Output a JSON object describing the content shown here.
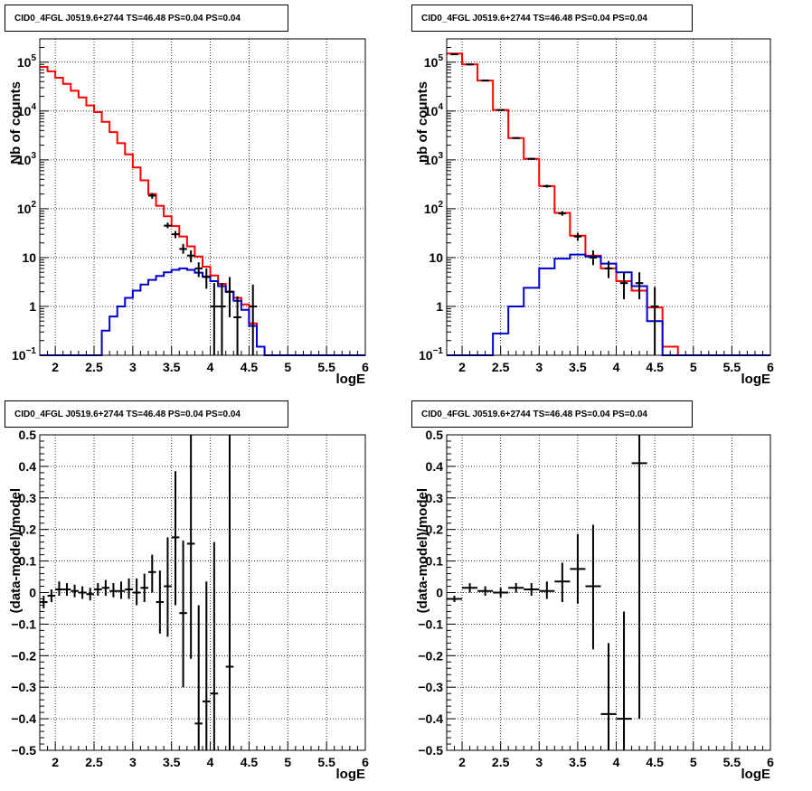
{
  "colors": {
    "background": "#ffffff",
    "frame": "#000000",
    "grid": "#000000",
    "data": "#000000",
    "total_model": "#ff0000",
    "source_model": "#0000cc"
  },
  "chart_data": [
    {
      "id": "counts-left",
      "type": "line",
      "title": "CID0_4FGL J0519.6+2744 TS=46.48 PS=0.04 PS=0.04",
      "xlabel": "logE",
      "ylabel": "Nb of counts",
      "xlim": [
        1.8,
        6.0
      ],
      "ylim": [
        0.1,
        300000
      ],
      "yscale": "log",
      "grid": true,
      "xticks": [
        "2",
        "2.5",
        "3",
        "3.5",
        "4",
        "4.5",
        "5",
        "5.5",
        "6"
      ],
      "yticks": [
        {
          "value": 0.1,
          "base": "10",
          "exp": "−1"
        },
        {
          "value": 1,
          "label": "1"
        },
        {
          "value": 10,
          "label": "10"
        },
        {
          "value": 100,
          "base": "10",
          "exp": "2"
        },
        {
          "value": 1000,
          "base": "10",
          "exp": "3"
        },
        {
          "value": 10000,
          "base": "10",
          "exp": "4"
        },
        {
          "value": 100000,
          "base": "10",
          "exp": "5"
        }
      ],
      "bin_edges": [
        1.8,
        1.9,
        2.0,
        2.1,
        2.2,
        2.3,
        2.4,
        2.5,
        2.6,
        2.7,
        2.8,
        2.9,
        3.0,
        3.1,
        3.2,
        3.3,
        3.4,
        3.5,
        3.6,
        3.7,
        3.8,
        3.9,
        4.0,
        4.1,
        4.2,
        4.3,
        4.4,
        4.5,
        4.6,
        4.7,
        4.8,
        4.9,
        5.0,
        5.1,
        5.2,
        5.3,
        5.4,
        5.5,
        5.6,
        5.7,
        5.8,
        5.9,
        6.0
      ],
      "series": [
        {
          "role": "total_model",
          "style": "step",
          "values": [
            80000,
            65000,
            48000,
            36000,
            26000,
            19000,
            13000,
            9500,
            6000,
            3700,
            2200,
            1300,
            700,
            380,
            200,
            115,
            70,
            44,
            27,
            17,
            10.5,
            6.5,
            4.3,
            2.9,
            2.0,
            1.5,
            1.1,
            0.45,
            0.15,
            0.1,
            0.1,
            0.1,
            0.1,
            0.1,
            0.1,
            0.1,
            0.1,
            0.1,
            0.1,
            0.1,
            0.1,
            0.1
          ]
        },
        {
          "role": "source_model",
          "style": "step",
          "values": [
            0.1,
            0.1,
            0.1,
            0.1,
            0.1,
            0.1,
            0.1,
            0.1,
            0.32,
            0.62,
            1.0,
            1.5,
            2.1,
            2.8,
            3.5,
            4.2,
            5.0,
            5.6,
            6.0,
            5.6,
            4.9,
            4.1,
            3.3,
            2.6,
            2.0,
            1.3,
            0.85,
            0.4,
            0.15,
            0.1,
            0.1,
            0.1,
            0.1,
            0.1,
            0.1,
            0.1,
            0.1,
            0.1,
            0.1,
            0.1,
            0.1,
            0.1
          ]
        },
        {
          "role": "data",
          "style": "errorbar",
          "points": [
            {
              "x": 3.25,
              "y": 185,
              "lo": 160,
              "hi": 210
            },
            {
              "x": 3.45,
              "y": 45,
              "lo": 40,
              "hi": 52
            },
            {
              "x": 3.55,
              "y": 30,
              "lo": 25,
              "hi": 35
            },
            {
              "x": 3.65,
              "y": 15,
              "lo": 12,
              "hi": 19
            },
            {
              "x": 3.75,
              "y": 11,
              "lo": 8,
              "hi": 14
            },
            {
              "x": 3.85,
              "y": 6,
              "lo": 4,
              "hi": 8
            },
            {
              "x": 3.95,
              "y": 4,
              "lo": 2.3,
              "hi": 6
            },
            {
              "x": 4.05,
              "y": 1,
              "lo": 0.1,
              "hi": 3
            },
            {
              "x": 4.15,
              "y": 1,
              "lo": 0.1,
              "hi": 3
            },
            {
              "x": 4.25,
              "y": 2,
              "lo": 0.6,
              "hi": 4
            },
            {
              "x": 4.35,
              "y": 0.6,
              "lo": 0.1,
              "hi": 1.6
            },
            {
              "x": 4.55,
              "y": 1,
              "lo": 0.1,
              "hi": 2.8
            }
          ]
        }
      ]
    },
    {
      "id": "counts-right",
      "type": "line",
      "title": "CID0_4FGL J0519.6+2744 TS=46.48 PS=0.04 PS=0.04",
      "xlabel": "logE",
      "ylabel": "nb of counts",
      "xlim": [
        1.8,
        6.0
      ],
      "ylim": [
        0.1,
        300000
      ],
      "yscale": "log",
      "grid": true,
      "xticks": [
        "2",
        "2.5",
        "3",
        "3.5",
        "4",
        "4.5",
        "5",
        "5.5",
        "6"
      ],
      "yticks": [
        {
          "value": 0.1,
          "base": "10",
          "exp": "−1"
        },
        {
          "value": 1,
          "label": "1"
        },
        {
          "value": 10,
          "label": "10"
        },
        {
          "value": 100,
          "base": "10",
          "exp": "2"
        },
        {
          "value": 1000,
          "base": "10",
          "exp": "3"
        },
        {
          "value": 10000,
          "base": "10",
          "exp": "4"
        },
        {
          "value": 100000,
          "base": "10",
          "exp": "5"
        }
      ],
      "bin_edges": [
        1.8,
        2.0,
        2.2,
        2.4,
        2.6,
        2.8,
        3.0,
        3.2,
        3.4,
        3.6,
        3.8,
        4.0,
        4.2,
        4.4,
        4.6,
        4.8,
        5.0,
        5.2,
        5.4,
        5.6,
        5.8,
        6.0
      ],
      "series": [
        {
          "role": "total_model",
          "style": "step",
          "values": [
            150000,
            90000,
            42000,
            10500,
            2800,
            1050,
            290,
            82,
            28,
            11,
            6,
            3.3,
            2.1,
            0.95,
            0.15,
            0.1,
            0.1,
            0.1,
            0.1,
            0.1,
            0.1
          ]
        },
        {
          "role": "source_model",
          "style": "step",
          "values": [
            0.1,
            0.1,
            0.1,
            0.28,
            1.0,
            2.4,
            6.0,
            9.5,
            11.5,
            10.5,
            7.5,
            5.0,
            2.6,
            0.5,
            0.1,
            0.1,
            0.1,
            0.1,
            0.1,
            0.1,
            0.1
          ]
        },
        {
          "role": "data",
          "style": "errorbar",
          "points": [
            {
              "x": 1.9,
              "y": 145000,
              "lo": 140000,
              "hi": 150000
            },
            {
              "x": 2.1,
              "y": 90000,
              "lo": 87000,
              "hi": 93000
            },
            {
              "x": 2.3,
              "y": 42000,
              "lo": 41000,
              "hi": 43000
            },
            {
              "x": 2.5,
              "y": 10500,
              "lo": 10200,
              "hi": 10800
            },
            {
              "x": 2.7,
              "y": 2800,
              "lo": 2700,
              "hi": 2900
            },
            {
              "x": 2.9,
              "y": 1050,
              "lo": 1000,
              "hi": 1100
            },
            {
              "x": 3.1,
              "y": 290,
              "lo": 270,
              "hi": 310
            },
            {
              "x": 3.3,
              "y": 80,
              "lo": 72,
              "hi": 89
            },
            {
              "x": 3.5,
              "y": 27,
              "lo": 22,
              "hi": 32
            },
            {
              "x": 3.7,
              "y": 10,
              "lo": 7,
              "hi": 14
            },
            {
              "x": 3.9,
              "y": 6,
              "lo": 3.8,
              "hi": 8.5
            },
            {
              "x": 4.1,
              "y": 3,
              "lo": 1.4,
              "hi": 5
            },
            {
              "x": 4.3,
              "y": 3,
              "lo": 1.4,
              "hi": 5
            },
            {
              "x": 4.5,
              "y": 1,
              "lo": 0.1,
              "hi": 2.5
            }
          ]
        }
      ]
    },
    {
      "id": "resid-left",
      "type": "scatter",
      "title": "CID0_4FGL J0519.6+2744 TS=46.48 PS=0.04 PS=0.04",
      "xlabel": "logE",
      "ylabel": "(data-model)/model",
      "xlim": [
        1.8,
        6.0
      ],
      "ylim": [
        -0.5,
        0.5
      ],
      "yscale": "linear",
      "grid": true,
      "xticks": [
        "2",
        "2.5",
        "3",
        "3.5",
        "4",
        "4.5",
        "5",
        "5.5",
        "6"
      ],
      "yticks_linear": [
        "−0.5",
        "−0.4",
        "−0.3",
        "−0.2",
        "−0.1",
        "0",
        "0.1",
        "0.2",
        "0.3",
        "0.4",
        "0.5"
      ],
      "series": [
        {
          "role": "data",
          "style": "errorbar",
          "xhalf": 0.05,
          "points": [
            {
              "x": 1.85,
              "y": -0.03,
              "lo": -0.05,
              "hi": -0.01
            },
            {
              "x": 1.95,
              "y": -0.01,
              "lo": -0.03,
              "hi": 0.01
            },
            {
              "x": 2.05,
              "y": 0.01,
              "lo": -0.01,
              "hi": 0.035
            },
            {
              "x": 2.15,
              "y": 0.01,
              "lo": -0.01,
              "hi": 0.03
            },
            {
              "x": 2.25,
              "y": 0.005,
              "lo": -0.015,
              "hi": 0.025
            },
            {
              "x": 2.35,
              "y": 0.0,
              "lo": -0.02,
              "hi": 0.02
            },
            {
              "x": 2.45,
              "y": -0.005,
              "lo": -0.025,
              "hi": 0.015
            },
            {
              "x": 2.55,
              "y": 0.01,
              "lo": -0.01,
              "hi": 0.03
            },
            {
              "x": 2.65,
              "y": 0.015,
              "lo": -0.01,
              "hi": 0.04
            },
            {
              "x": 2.75,
              "y": 0.005,
              "lo": -0.015,
              "hi": 0.03
            },
            {
              "x": 2.85,
              "y": 0.005,
              "lo": -0.02,
              "hi": 0.035
            },
            {
              "x": 2.95,
              "y": 0.01,
              "lo": -0.02,
              "hi": 0.045
            },
            {
              "x": 3.05,
              "y": 0.0,
              "lo": -0.04,
              "hi": 0.045
            },
            {
              "x": 3.15,
              "y": 0.015,
              "lo": -0.03,
              "hi": 0.06
            },
            {
              "x": 3.25,
              "y": 0.065,
              "lo": 0.0,
              "hi": 0.12
            },
            {
              "x": 3.35,
              "y": -0.03,
              "lo": -0.13,
              "hi": 0.07
            },
            {
              "x": 3.45,
              "y": 0.02,
              "lo": -0.14,
              "hi": 0.175
            },
            {
              "x": 3.55,
              "y": 0.175,
              "lo": -0.04,
              "hi": 0.385
            },
            {
              "x": 3.65,
              "y": -0.065,
              "lo": -0.3,
              "hi": 0.165
            },
            {
              "x": 3.75,
              "y": 0.155,
              "lo": -0.21,
              "hi": 0.5
            },
            {
              "x": 3.85,
              "y": -0.415,
              "lo": -0.5,
              "hi": -0.04
            },
            {
              "x": 3.95,
              "y": -0.345,
              "lo": -0.5,
              "hi": 0.035
            },
            {
              "x": 4.05,
              "y": -0.32,
              "lo": -0.5,
              "hi": 0.16
            },
            {
              "x": 4.25,
              "y": -0.235,
              "lo": -0.5,
              "hi": 0.5
            }
          ]
        }
      ]
    },
    {
      "id": "resid-right",
      "type": "scatter",
      "title": "CID0_4FGL J0519.6+2744 TS=46.48 PS=0.04 PS=0.04",
      "xlabel": "logE",
      "ylabel": "(data-model)/model",
      "xlim": [
        1.8,
        6.0
      ],
      "ylim": [
        -0.5,
        0.5
      ],
      "yscale": "linear",
      "grid": true,
      "xticks": [
        "2",
        "2.5",
        "3",
        "3.5",
        "4",
        "4.5",
        "5",
        "5.5",
        "6"
      ],
      "yticks_linear": [
        "−0.5",
        "−0.4",
        "−0.3",
        "−0.2",
        "−0.1",
        "0",
        "0.1",
        "0.2",
        "0.3",
        "0.4",
        "0.5"
      ],
      "series": [
        {
          "role": "data",
          "style": "errorbar",
          "xhalf": 0.1,
          "points": [
            {
              "x": 1.9,
              "y": -0.02,
              "lo": -0.03,
              "hi": -0.01
            },
            {
              "x": 2.1,
              "y": 0.015,
              "lo": 0.0,
              "hi": 0.03
            },
            {
              "x": 2.3,
              "y": 0.005,
              "lo": -0.01,
              "hi": 0.02
            },
            {
              "x": 2.5,
              "y": 0.0,
              "lo": -0.015,
              "hi": 0.015
            },
            {
              "x": 2.7,
              "y": 0.015,
              "lo": 0.0,
              "hi": 0.03
            },
            {
              "x": 2.9,
              "y": 0.01,
              "lo": -0.01,
              "hi": 0.03
            },
            {
              "x": 3.1,
              "y": 0.005,
              "lo": -0.02,
              "hi": 0.035
            },
            {
              "x": 3.3,
              "y": 0.035,
              "lo": -0.03,
              "hi": 0.095
            },
            {
              "x": 3.5,
              "y": 0.075,
              "lo": -0.035,
              "hi": 0.185
            },
            {
              "x": 3.7,
              "y": 0.02,
              "lo": -0.18,
              "hi": 0.215
            },
            {
              "x": 3.9,
              "y": -0.385,
              "lo": -0.5,
              "hi": -0.16
            },
            {
              "x": 4.1,
              "y": -0.4,
              "lo": -0.5,
              "hi": -0.06
            },
            {
              "x": 4.3,
              "y": 0.41,
              "lo": -0.4,
              "hi": 0.5
            }
          ]
        }
      ]
    }
  ]
}
